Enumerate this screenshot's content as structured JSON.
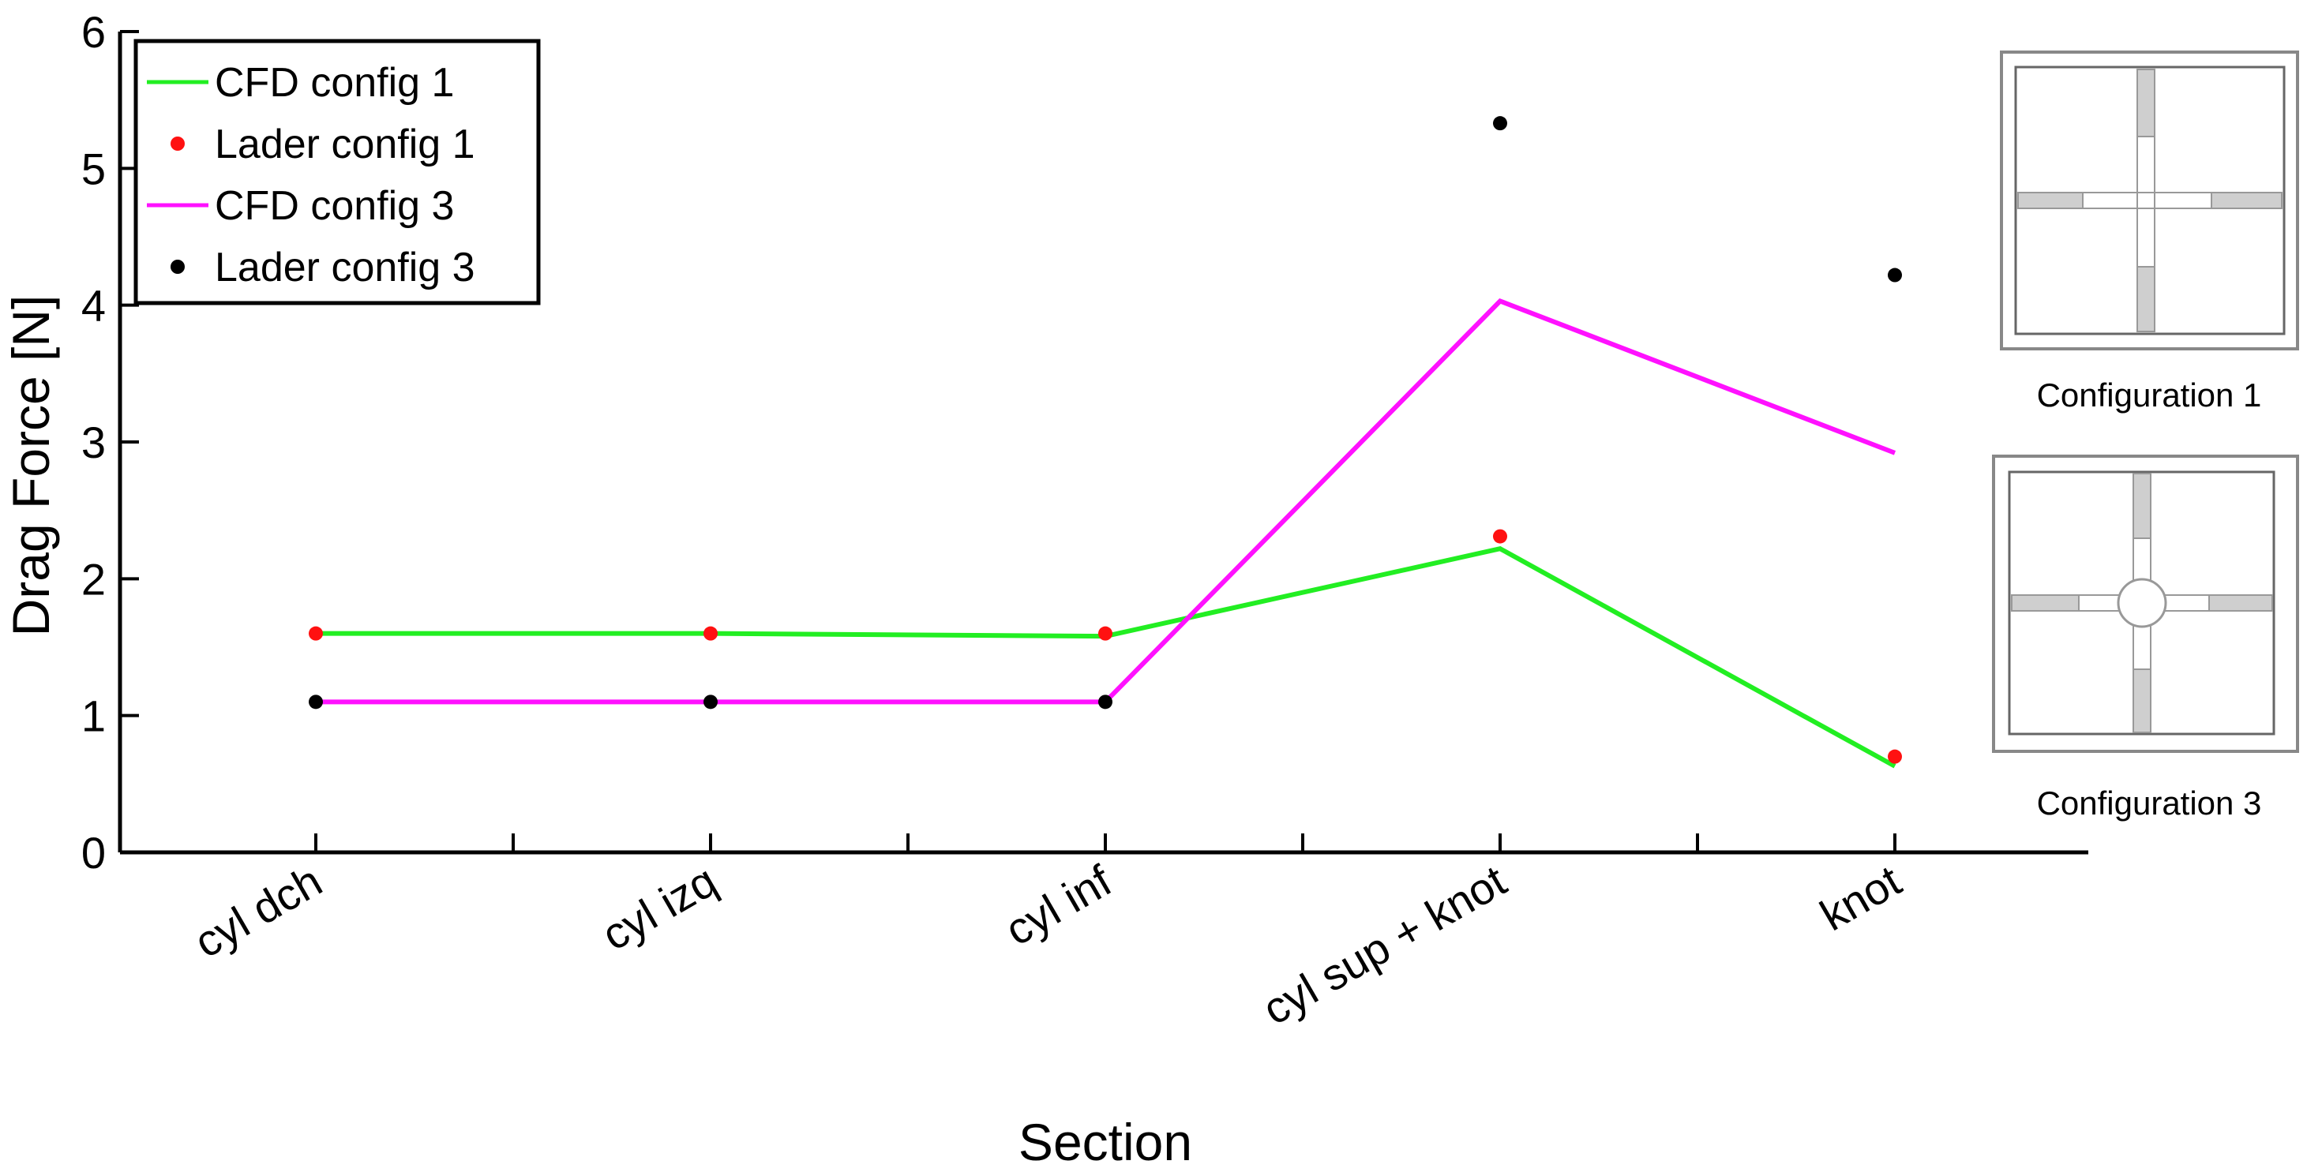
{
  "chart_data": {
    "type": "line",
    "xlabel": "Section",
    "ylabel": "Drag Force [N]",
    "ylim": [
      0,
      6
    ],
    "yticks": [
      0,
      1,
      2,
      3,
      4,
      5,
      6
    ],
    "categories": [
      "cyl dch",
      "cyl izq",
      "cyl inf",
      "cyl sup + knot",
      "knot"
    ],
    "grid": false,
    "legend_position": "top-left",
    "series": [
      {
        "name": "CFD config 1",
        "kind": "line",
        "color": "#22ee22",
        "values": [
          1.6,
          1.6,
          1.58,
          2.22,
          0.63
        ]
      },
      {
        "name": "Lader config 1",
        "kind": "points",
        "color": "#ff1111",
        "values": [
          1.6,
          1.6,
          1.6,
          2.31,
          0.7
        ]
      },
      {
        "name": "CFD config 3",
        "kind": "line",
        "color": "#ff11ff",
        "values": [
          1.1,
          1.1,
          1.1,
          4.03,
          2.92
        ]
      },
      {
        "name": "Lader config 3",
        "kind": "points",
        "color": "#000000",
        "values": [
          1.1,
          1.1,
          1.1,
          5.33,
          4.22
        ]
      }
    ]
  },
  "insets": [
    {
      "caption": "Configuration  1",
      "center_shape": "square"
    },
    {
      "caption": "Configuration  3",
      "center_shape": "circle"
    }
  ]
}
